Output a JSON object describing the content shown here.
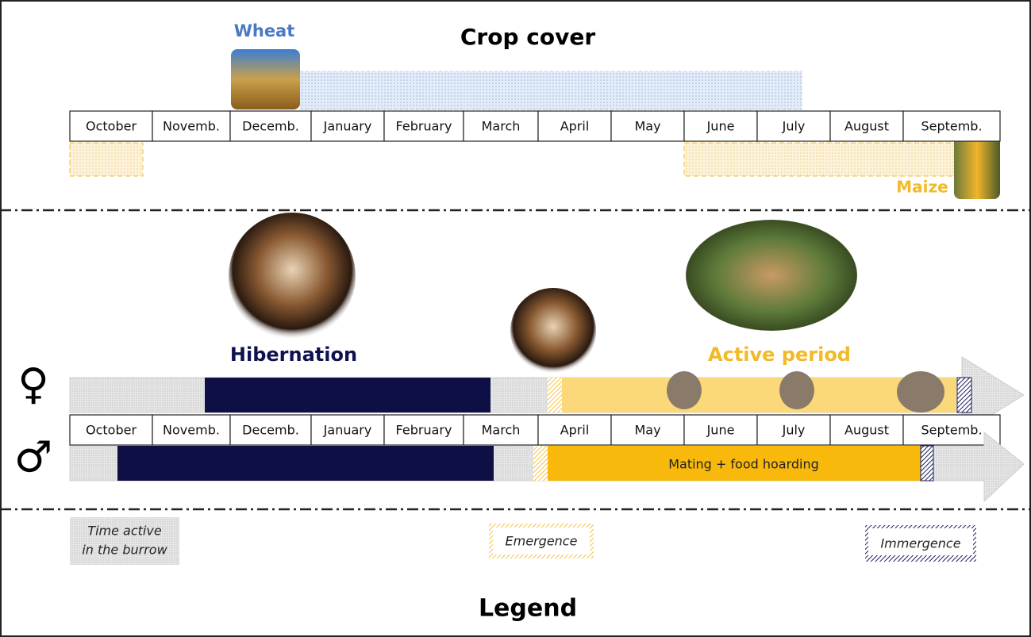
{
  "crop_cover": {
    "title": "Crop cover",
    "wheat": "Wheat",
    "maize": "Maize",
    "months": [
      "October",
      "Novemb.",
      "Decemb.",
      "January",
      "February",
      "March",
      "April",
      "May",
      "June",
      "July",
      "August",
      "Septemb."
    ]
  },
  "life_cycle": {
    "hibernation": "Hibernation",
    "active_period": "Active period",
    "female": "♀",
    "male": "♂",
    "mating": "Mating + food hoarding",
    "months": [
      "October",
      "Novemb.",
      "Decemb.",
      "January",
      "February",
      "March",
      "April",
      "May",
      "June",
      "July",
      "August",
      "Septemb."
    ]
  },
  "legend": {
    "title": "Legend",
    "burrow": [
      "Time active",
      "in the burrow"
    ],
    "emergence": "Emergence",
    "immergence": "Immergence"
  }
}
